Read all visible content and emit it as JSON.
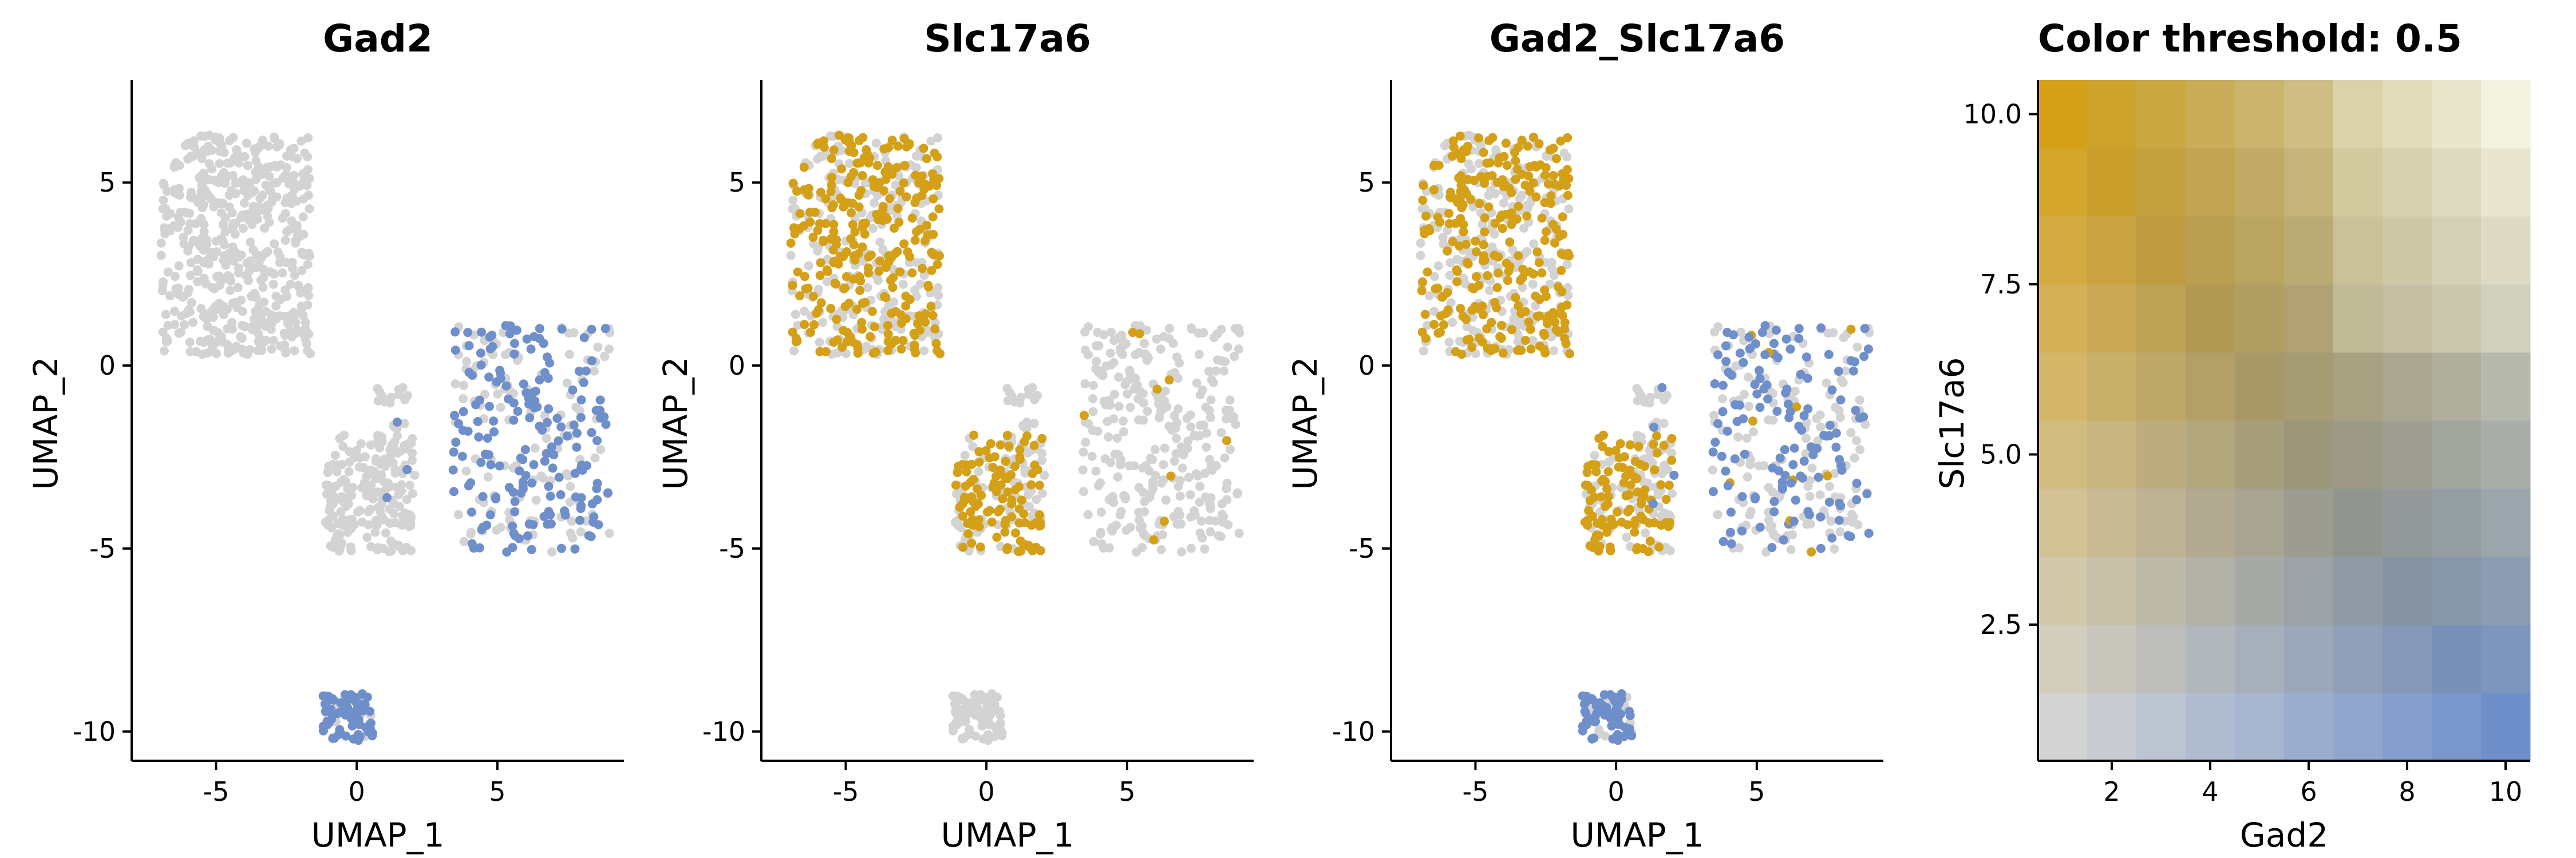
{
  "chart_data": [
    {
      "type": "scatter",
      "title": "Gad2",
      "xlabel": "UMAP_1",
      "ylabel": "UMAP_2",
      "xlim": [
        -8,
        9.5
      ],
      "ylim": [
        -10.8,
        7.8
      ],
      "xticks": [
        -5,
        0,
        5
      ],
      "yticks": [
        5,
        0,
        -5,
        -10
      ],
      "colored_fraction": [
        0.0,
        0.0,
        0.22,
        0.55,
        0.75
      ],
      "point_color": "#6F8FCB",
      "grey": "#D3D3D3"
    },
    {
      "type": "scatter",
      "title": "Slc17a6",
      "xlabel": "UMAP_1",
      "ylabel": "UMAP_2",
      "xlim": [
        -8,
        9.5
      ],
      "ylim": [
        -10.8,
        7.8
      ],
      "xticks": [
        -5,
        0,
        5
      ],
      "yticks": [
        5,
        0,
        -5,
        -10
      ],
      "colored_fraction": [
        0.55,
        0.6,
        0.0,
        0.03,
        0.0
      ],
      "point_color": "#D4A017",
      "grey": "#D3D3D3"
    },
    {
      "type": "scatter",
      "title": "Gad2_Slc17a6",
      "xlabel": "UMAP_1",
      "ylabel": "UMAP_2",
      "xlim": [
        -8,
        9.5
      ],
      "ylim": [
        -10.8,
        7.8
      ],
      "xticks": [
        -5,
        0,
        5
      ],
      "yticks": [
        5,
        0,
        -5,
        -10
      ],
      "colored_fraction_gold": [
        0.5,
        0.6,
        0.0,
        0.02,
        0.0
      ],
      "colored_fraction_blue": [
        0.0,
        0.0,
        0.2,
        0.5,
        0.75
      ],
      "gold": "#D4A017",
      "blue": "#6F8FCB",
      "grey": "#D3D3D3"
    },
    {
      "type": "heatmap",
      "title": "Color threshold: 0.5",
      "xlabel": "Gad2",
      "ylabel": "Slc17a6",
      "x": [
        1,
        2,
        3,
        4,
        5,
        6,
        7,
        8,
        9,
        10
      ],
      "y": [
        1,
        2,
        3,
        4,
        5,
        6,
        7,
        8,
        9,
        10
      ],
      "xlim": [
        0.5,
        10.5
      ],
      "ylim": [
        0.5,
        10.5
      ],
      "xticks": [
        2,
        4,
        6,
        8,
        10
      ],
      "yticks": [
        2.5,
        5.0,
        7.5,
        10.0
      ],
      "ytick_labels": [
        "2.5",
        "5.0",
        "7.5",
        "10.0"
      ],
      "color_low": "#D3D3D3",
      "color_gad2_high": "#6F8FCB",
      "color_slc17a6_high": "#D4A017",
      "threshold": 0.5
    }
  ],
  "clusters": [
    {
      "name": "upper-left",
      "cx": -4.3,
      "cy": 3.3,
      "w": 5.3,
      "h": 6.0,
      "n": 520
    },
    {
      "name": "middle-lower",
      "cx": 0.4,
      "cy": -3.5,
      "w": 3.2,
      "h": 3.2,
      "n": 170
    },
    {
      "name": "middle-branch",
      "cx": 1.3,
      "cy": -2.2,
      "w": 1.6,
      "h": 3.2,
      "n": 40
    },
    {
      "name": "right",
      "cx": 6.2,
      "cy": -2.0,
      "w": 5.6,
      "h": 6.2,
      "n": 300
    },
    {
      "name": "bottom",
      "cx": -0.3,
      "cy": -9.6,
      "w": 1.8,
      "h": 1.3,
      "n": 80
    }
  ]
}
